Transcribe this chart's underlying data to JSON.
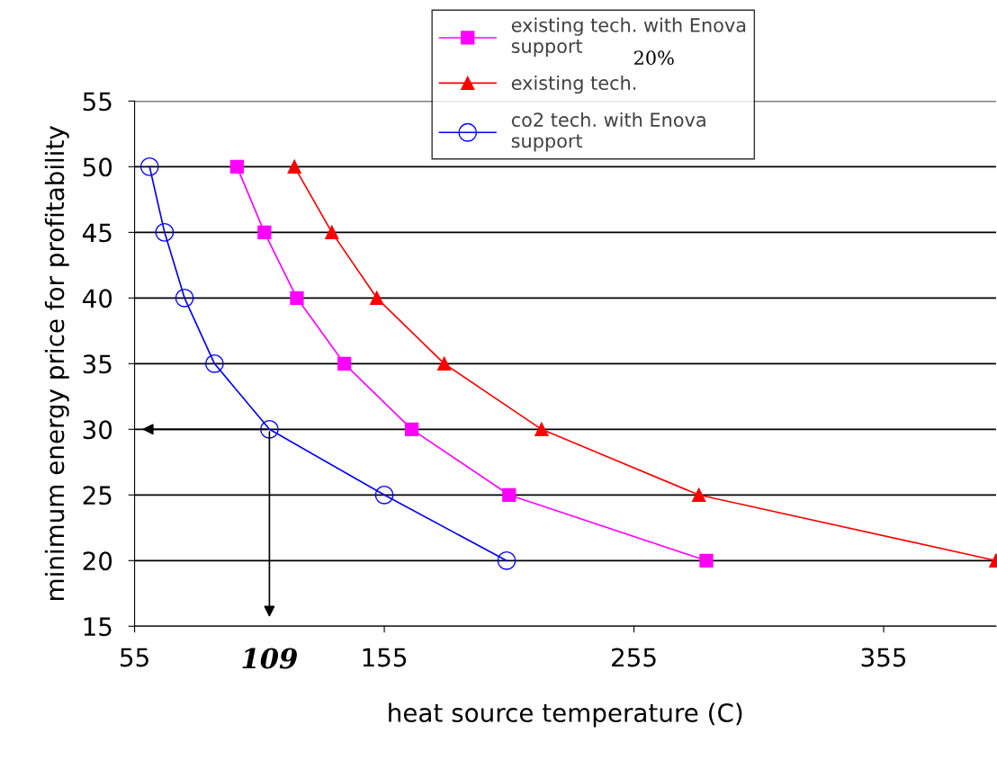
{
  "chart_data": {
    "type": "line",
    "xlabel": "heat source temperature (C)",
    "ylabel": "minimum energy price for profitability",
    "series": [
      {
        "name": "existing tech. with Enova support",
        "color": "#ff00ff",
        "marker": "square",
        "x": [
          96,
          107,
          120,
          139,
          166,
          205,
          284
        ],
        "values": [
          50,
          45,
          40,
          35,
          30,
          25,
          20
        ]
      },
      {
        "name": "existing tech.",
        "color": "#ff0000",
        "marker": "triangle",
        "x": [
          119,
          134,
          152,
          179,
          218,
          281,
          400
        ],
        "values": [
          50,
          45,
          40,
          35,
          30,
          25,
          20
        ]
      },
      {
        "name": "co2 tech. with Enova support",
        "color": "#0000ff",
        "marker": "circle",
        "x": [
          61,
          67,
          75,
          87,
          109,
          155,
          204
        ],
        "values": [
          50,
          45,
          40,
          35,
          30,
          25,
          20
        ]
      }
    ],
    "xlim": [
      55,
      400
    ],
    "xticks": [
      55,
      155,
      255,
      355
    ],
    "ylim": [
      15,
      55
    ],
    "yticks": [
      15,
      20,
      25,
      30,
      35,
      40,
      45,
      50,
      55
    ],
    "grid": "y",
    "legend": "top",
    "annotations": [
      "20%",
      {
        "text": "109",
        "x": 109,
        "y": 30
      }
    ]
  }
}
